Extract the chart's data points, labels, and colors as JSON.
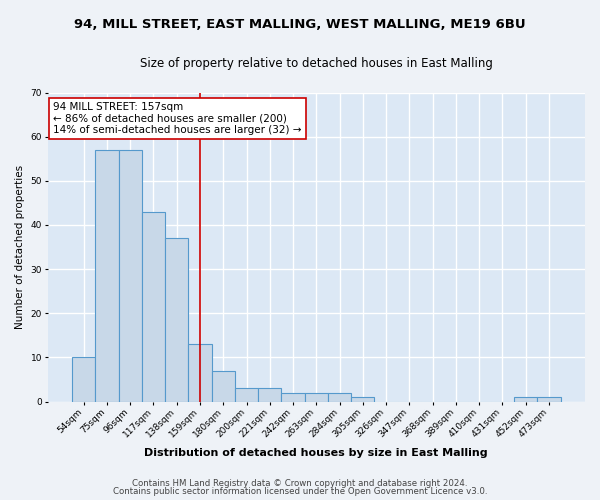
{
  "title1": "94, MILL STREET, EAST MALLING, WEST MALLING, ME19 6BU",
  "title2": "Size of property relative to detached houses in East Malling",
  "xlabel": "Distribution of detached houses by size in East Malling",
  "ylabel": "Number of detached properties",
  "categories": [
    "54sqm",
    "75sqm",
    "96sqm",
    "117sqm",
    "138sqm",
    "159sqm",
    "180sqm",
    "200sqm",
    "221sqm",
    "242sqm",
    "263sqm",
    "284sqm",
    "305sqm",
    "326sqm",
    "347sqm",
    "368sqm",
    "389sqm",
    "410sqm",
    "431sqm",
    "452sqm",
    "473sqm"
  ],
  "values": [
    10,
    57,
    57,
    43,
    37,
    13,
    7,
    3,
    3,
    2,
    2,
    2,
    1,
    0,
    0,
    0,
    0,
    0,
    0,
    1,
    1
  ],
  "bar_color": "#c8d8e8",
  "bar_edge_color": "#5599cc",
  "vline_x": 5,
  "vline_color": "#cc0000",
  "annotation_text": "94 MILL STREET: 157sqm\n← 86% of detached houses are smaller (200)\n14% of semi-detached houses are larger (32) →",
  "annotation_box_color": "#ffffff",
  "annotation_box_edge_color": "#cc0000",
  "ylim": [
    0,
    70
  ],
  "yticks": [
    0,
    10,
    20,
    30,
    40,
    50,
    60,
    70
  ],
  "footer1": "Contains HM Land Registry data © Crown copyright and database right 2024.",
  "footer2": "Contains public sector information licensed under the Open Government Licence v3.0.",
  "bg_color": "#eef2f7",
  "plot_bg_color": "#dce8f5",
  "title1_fontsize": 9.5,
  "title2_fontsize": 8.5,
  "xlabel_fontsize": 8,
  "ylabel_fontsize": 7.5,
  "tick_fontsize": 6.5,
  "footer_fontsize": 6.2,
  "annotation_fontsize": 7.5,
  "grid_color": "#ffffff",
  "grid_linewidth": 1.0
}
